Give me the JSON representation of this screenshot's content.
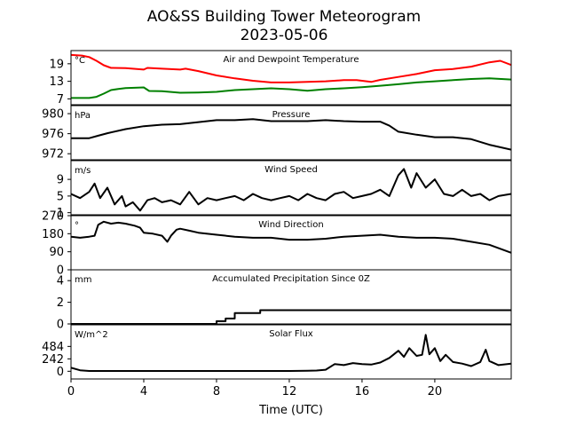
{
  "chart_data": {
    "type": "line",
    "title_line1": "AO&SS Building Tower Meteorogram",
    "title_line2": "2023-05-06",
    "xlabel": "Time (UTC)",
    "xlim": [
      0,
      24.2
    ],
    "x_ticks": [
      0,
      4,
      8,
      12,
      16,
      20
    ],
    "x_tick_labels": [
      "0",
      "4",
      "8",
      "12",
      "16",
      "20"
    ],
    "panels": [
      {
        "id": "temp",
        "title": "Air and Dewpoint Temperature",
        "unit": "°C",
        "ylim": [
          5,
          23.5
        ],
        "y_ticks": [
          7,
          13,
          19
        ],
        "y_tick_labels": [
          "7",
          "13",
          "19"
        ],
        "series": [
          {
            "color": "#ff0000",
            "x": [
              0,
              0.6,
              1.0,
              1.4,
              1.8,
              2.2,
              3,
              4,
              4.2,
              5,
              6,
              6.3,
              7,
              8,
              9,
              10,
              11,
              12,
              13,
              14,
              15,
              15.7,
              16.5,
              17,
              18,
              19,
              20,
              21,
              22,
              23,
              23.6,
              24.2
            ],
            "y": [
              22,
              21.8,
              21.3,
              20,
              18.5,
              17.6,
              17.5,
              17,
              17.6,
              17.3,
              17.0,
              17.3,
              16.5,
              15,
              14,
              13.2,
              12.6,
              12.6,
              12.8,
              13.0,
              13.4,
              13.4,
              12.8,
              13.5,
              14.5,
              15.5,
              16.8,
              17.2,
              18,
              19.5,
              20,
              18.6
            ]
          },
          {
            "color": "#008000",
            "x": [
              0,
              1.0,
              1.4,
              1.8,
              2.2,
              2.6,
              3,
              4,
              4.3,
              5,
              6,
              7,
              8,
              9,
              10,
              11,
              12,
              13,
              14,
              15,
              16,
              17,
              18,
              19,
              20,
              21,
              22,
              23,
              24.2
            ],
            "y": [
              7.3,
              7.3,
              7.7,
              8.8,
              10.0,
              10.4,
              10.7,
              10.9,
              9.7,
              9.6,
              9.1,
              9.2,
              9.4,
              10.0,
              10.3,
              10.6,
              10.3,
              9.8,
              10.3,
              10.6,
              11.0,
              11.5,
              12.0,
              12.6,
              13.0,
              13.4,
              13.8,
              14.0,
              13.6
            ]
          }
        ]
      },
      {
        "id": "pressure",
        "title": "Pressure",
        "unit": "hPa",
        "ylim": [
          970.8,
          981.6
        ],
        "y_ticks": [
          972,
          976,
          980
        ],
        "y_tick_labels": [
          "972",
          "976",
          "980"
        ],
        "series": [
          {
            "color": "#000000",
            "x": [
              0,
              1,
              1.5,
              2,
              3,
              4,
              5,
              6,
              7,
              8,
              9,
              10,
              11,
              12,
              13,
              14,
              15,
              16,
              17,
              17.5,
              18,
              19,
              20,
              21,
              22,
              23,
              24.2
            ],
            "y": [
              975.1,
              975.1,
              975.6,
              976.1,
              976.9,
              977.5,
              977.8,
              977.9,
              978.3,
              978.7,
              978.7,
              978.9,
              978.5,
              978.5,
              978.5,
              978.7,
              978.5,
              978.4,
              978.4,
              977.6,
              976.4,
              975.8,
              975.3,
              975.3,
              974.9,
              973.8,
              972.8
            ]
          }
        ]
      },
      {
        "id": "wind_speed",
        "title": "Wind Speed",
        "unit": "m/s",
        "ylim": [
          0.5,
          13.5
        ],
        "y_ticks": [
          1,
          5,
          9
        ],
        "y_tick_labels": [
          "1",
          "5",
          "9"
        ],
        "series": [
          {
            "color": "#000000",
            "x": [
              0,
              0.5,
              1,
              1.3,
              1.6,
              2,
              2.4,
              2.8,
              3,
              3.4,
              3.8,
              4.2,
              4.6,
              5,
              5.5,
              6,
              6.5,
              7,
              7.5,
              8,
              8.5,
              9,
              9.5,
              10,
              10.5,
              11,
              11.5,
              12,
              12.5,
              13,
              13.5,
              14,
              14.5,
              15,
              15.5,
              16,
              16.5,
              17,
              17.5,
              18,
              18.3,
              18.7,
              19,
              19.5,
              20,
              20.5,
              21,
              21.5,
              22,
              22.5,
              23,
              23.5,
              24.2
            ],
            "y": [
              5.5,
              4.5,
              6,
              8,
              4.5,
              7,
              3,
              5,
              2.5,
              3.5,
              1.5,
              4,
              4.5,
              3.5,
              4,
              3,
              6,
              3,
              4.5,
              4,
              4.5,
              5,
              4,
              5.5,
              4.5,
              4,
              4.5,
              5,
              4,
              5.5,
              4.5,
              4,
              5.5,
              6,
              4.5,
              5,
              5.5,
              6.5,
              5,
              10,
              11.5,
              7,
              10.5,
              7,
              9,
              5.5,
              5,
              6.5,
              5,
              5.5,
              4,
              5,
              5.5
            ]
          }
        ]
      },
      {
        "id": "wind_dir",
        "title": "Wind Direction",
        "unit": "°",
        "ylim": [
          0,
          270
        ],
        "y_ticks": [
          0,
          90,
          180,
          270
        ],
        "y_tick_labels": [
          "0",
          "90",
          "180",
          "270"
        ],
        "series": [
          {
            "color": "#000000",
            "x": [
              0,
              0.5,
              1,
              1.3,
              1.5,
              1.8,
              2.2,
              2.6,
              3,
              3.5,
              3.8,
              4,
              4.5,
              5,
              5.3,
              5.5,
              5.8,
              6,
              6.5,
              7,
              8,
              9,
              10,
              11,
              12,
              13,
              14,
              15,
              16,
              17,
              18,
              19,
              20,
              21,
              22,
              23,
              24.2
            ],
            "y": [
              165,
              160,
              165,
              170,
              225,
              240,
              230,
              235,
              230,
              220,
              210,
              185,
              180,
              170,
              140,
              170,
              200,
              205,
              195,
              185,
              175,
              165,
              160,
              160,
              150,
              150,
              155,
              165,
              170,
              175,
              165,
              160,
              160,
              155,
              140,
              125,
              85
            ]
          }
        ]
      },
      {
        "id": "precip",
        "title": "Accumulated Precipitation Since 0Z",
        "unit": "mm",
        "ylim": [
          0,
          5
        ],
        "y_ticks": [
          0,
          2,
          4
        ],
        "y_tick_labels": [
          "0",
          "2",
          "4"
        ],
        "series": [
          {
            "color": "#000000",
            "x": [
              0,
              8.0,
              8.0,
              8.5,
              8.5,
              9.0,
              9.0,
              10.4,
              10.4,
              24.2
            ],
            "y": [
              0,
              0,
              0.25,
              0.25,
              0.5,
              0.5,
              1.0,
              1.0,
              1.27,
              1.27
            ]
          }
        ]
      },
      {
        "id": "solar",
        "title": "Solar Flux",
        "unit": "W/m^2",
        "ylim": [
          -150,
          905
        ],
        "y_ticks": [
          0,
          242,
          484
        ],
        "y_tick_labels": [
          "0",
          "242",
          "484"
        ],
        "series": [
          {
            "color": "#000000",
            "x": [
              0,
              0.5,
              1,
              2,
              4,
              6,
              8,
              10,
              12,
              13,
              13.5,
              14,
              14.5,
              15,
              15.5,
              16,
              16.5,
              17,
              17.5,
              18,
              18.3,
              18.6,
              19,
              19.3,
              19.5,
              19.7,
              20,
              20.3,
              20.6,
              21,
              21.5,
              22,
              22.5,
              22.8,
              23,
              23.5,
              24.2
            ],
            "y": [
              70,
              20,
              5,
              5,
              5,
              5,
              5,
              5,
              5,
              10,
              15,
              30,
              140,
              120,
              160,
              140,
              130,
              170,
              260,
              400,
              280,
              450,
              300,
              320,
              710,
              330,
              450,
              200,
              320,
              180,
              150,
              100,
              180,
              420,
              200,
              120,
              150
            ]
          }
        ]
      }
    ]
  }
}
